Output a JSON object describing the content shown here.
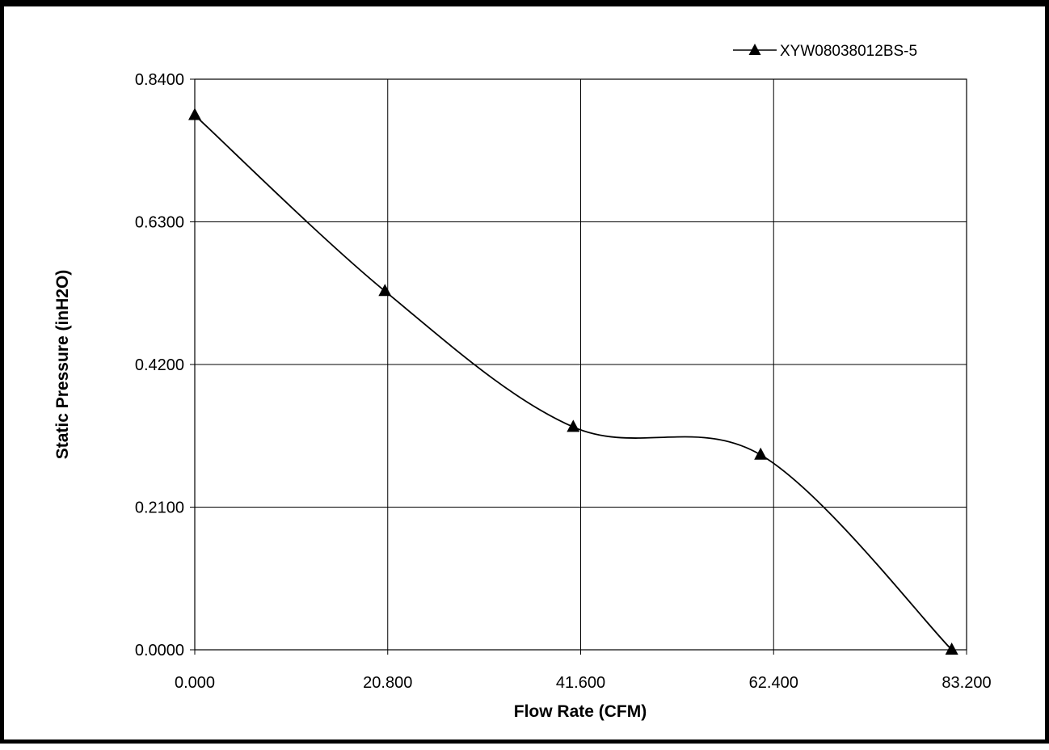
{
  "chart_data": {
    "type": "line",
    "title": "",
    "xlabel": "Flow Rate (CFM)",
    "ylabel": "Static Pressure (inH2O)",
    "xlim": [
      0,
      83.2
    ],
    "ylim": [
      0,
      0.84
    ],
    "xticks": [
      0,
      20.8,
      41.6,
      62.4,
      83.2
    ],
    "yticks": [
      0,
      0.21,
      0.42,
      0.63,
      0.84
    ],
    "xtick_labels": [
      "0.000",
      "20.800",
      "41.600",
      "62.400",
      "83.200"
    ],
    "ytick_labels": [
      "0.0000",
      "0.2100",
      "0.4200",
      "0.6300",
      "0.8400"
    ],
    "grid": true,
    "legend_position": "top-right",
    "smooth": true,
    "series": [
      {
        "name": "XYW08038012BS-5",
        "color": "#000000",
        "marker": "triangle",
        "x": [
          0,
          20.5,
          40.8,
          61.0,
          81.6
        ],
        "y": [
          0.787,
          0.528,
          0.328,
          0.287,
          0.0
        ]
      }
    ]
  }
}
